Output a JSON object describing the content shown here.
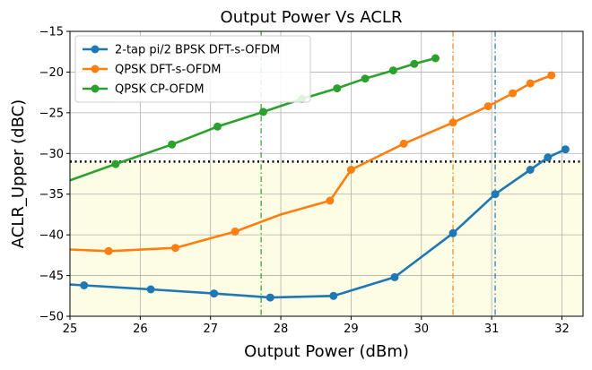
{
  "chart_data": {
    "type": "line",
    "title": "Output Power Vs ACLR",
    "xlabel": "Output Power (dBm)",
    "ylabel": "ACLR_Upper (dBC)",
    "xlim": [
      25,
      32.3
    ],
    "ylim": [
      -50,
      -15
    ],
    "xticks": [
      25,
      26,
      27,
      28,
      29,
      30,
      31,
      32
    ],
    "yticks": [
      -50,
      -45,
      -40,
      -35,
      -30,
      -25,
      -20,
      -15
    ],
    "xtick_labels": [
      "25",
      "26",
      "27",
      "28",
      "29",
      "30",
      "31",
      "32"
    ],
    "ytick_labels": [
      "−50",
      "−45",
      "−40",
      "−35",
      "−30",
      "−25",
      "−20",
      "−15"
    ],
    "grid": true,
    "legend_position": "top-left",
    "threshold": {
      "y": -31,
      "style": "dotted",
      "color": "#000000"
    },
    "shaded_region": {
      "from_y": -50,
      "to_y": -31,
      "color": "#fdfde6"
    },
    "series": [
      {
        "name": "2-tap pi/2 BPSK DFT-s-OFDM",
        "color": "#1f77b4",
        "x": [
          25.2,
          26.15,
          27.05,
          27.85,
          28.75,
          29.62,
          30.45,
          31.05,
          31.55,
          31.8,
          32.05
        ],
        "y": [
          -46.2,
          -46.7,
          -47.2,
          -47.7,
          -47.5,
          -45.2,
          -39.8,
          -35.0,
          -32.0,
          -30.5,
          -29.5
        ],
        "marker_x_start": 25.2,
        "line_x_start": 25.0,
        "line_y_start": -46.1,
        "vline_x": 31.05
      },
      {
        "name": "QPSK DFT-s-OFDM",
        "color": "#ff7f0e",
        "x": [
          25.0,
          25.55,
          26.5,
          27.35,
          28.0,
          28.7,
          29.0,
          29.75,
          30.45,
          30.95,
          31.3,
          31.55,
          31.85
        ],
        "y": [
          -41.8,
          -42.0,
          -41.6,
          -39.6,
          -37.5,
          -35.8,
          -32.0,
          -28.8,
          -26.2,
          -24.2,
          -22.6,
          -21.4,
          -20.4
        ],
        "markers": [
          false,
          true,
          true,
          true,
          false,
          true,
          true,
          true,
          true,
          true,
          true,
          true,
          true
        ],
        "vline_x": 30.45
      },
      {
        "name": "QPSK CP-OFDM",
        "color": "#2ca02c",
        "x": [
          25.0,
          25.65,
          26.45,
          27.1,
          27.75,
          28.3,
          28.8,
          29.2,
          29.6,
          29.9,
          30.2
        ],
        "y": [
          -33.3,
          -31.3,
          -28.9,
          -26.7,
          -24.9,
          -23.3,
          -22.0,
          -20.8,
          -19.8,
          -19.0,
          -18.3
        ],
        "markers": [
          false,
          true,
          true,
          true,
          true,
          true,
          true,
          true,
          true,
          true,
          true
        ],
        "vline_x": 27.72
      }
    ]
  }
}
